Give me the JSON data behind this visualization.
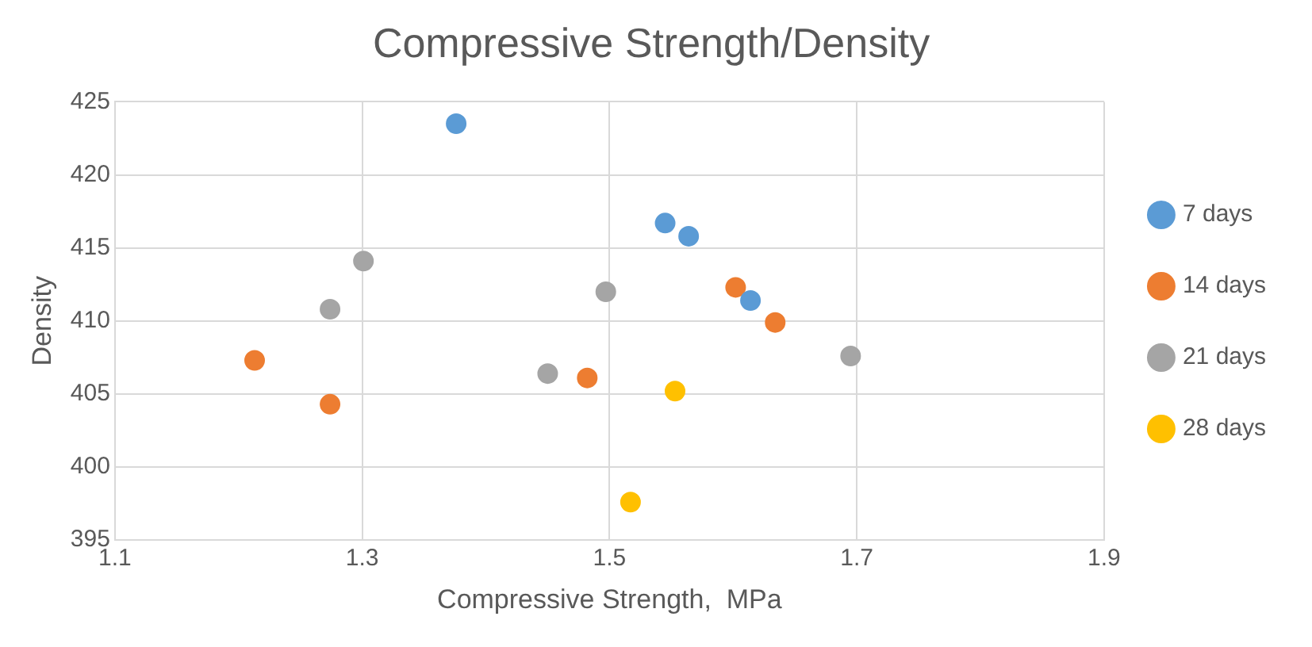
{
  "chart_data": {
    "type": "scatter",
    "title": "Compressive Strength/Density",
    "xlabel": "Compressive Strength,  MPa",
    "ylabel": "Density",
    "xlim": [
      1.1,
      1.9
    ],
    "xticks": [
      {
        "value": 1.1,
        "label": "1.1"
      },
      {
        "value": 1.3,
        "label": "1.3"
      },
      {
        "value": 1.5,
        "label": "1.5"
      },
      {
        "value": 1.7,
        "label": "1.7"
      },
      {
        "value": 1.9,
        "label": "1.9"
      }
    ],
    "ylim": [
      395,
      425
    ],
    "yticks": [
      395,
      400,
      405,
      410,
      415,
      420,
      425
    ],
    "grid": true,
    "legend": "right",
    "marker": "circle",
    "series": [
      {
        "name": "7 days",
        "color": "#5b9bd5",
        "x": [
          1.376,
          1.545,
          1.564,
          1.614
        ],
        "values": [
          423.5,
          416.7,
          415.8,
          411.4
        ]
      },
      {
        "name": "14 days",
        "color": "#ed7d31",
        "x": [
          1.602,
          1.634,
          1.213,
          1.274,
          1.482
        ],
        "values": [
          412.3,
          409.9,
          407.3,
          404.3,
          406.1
        ]
      },
      {
        "name": "21 days",
        "color": "#a5a5a5",
        "x": [
          1.301,
          1.274,
          1.497,
          1.45,
          1.695
        ],
        "values": [
          414.1,
          410.8,
          412.0,
          406.4,
          407.6
        ]
      },
      {
        "name": "28 days",
        "color": "#ffc000",
        "x": [
          1.553,
          1.517
        ],
        "values": [
          405.2,
          397.6
        ]
      }
    ]
  }
}
